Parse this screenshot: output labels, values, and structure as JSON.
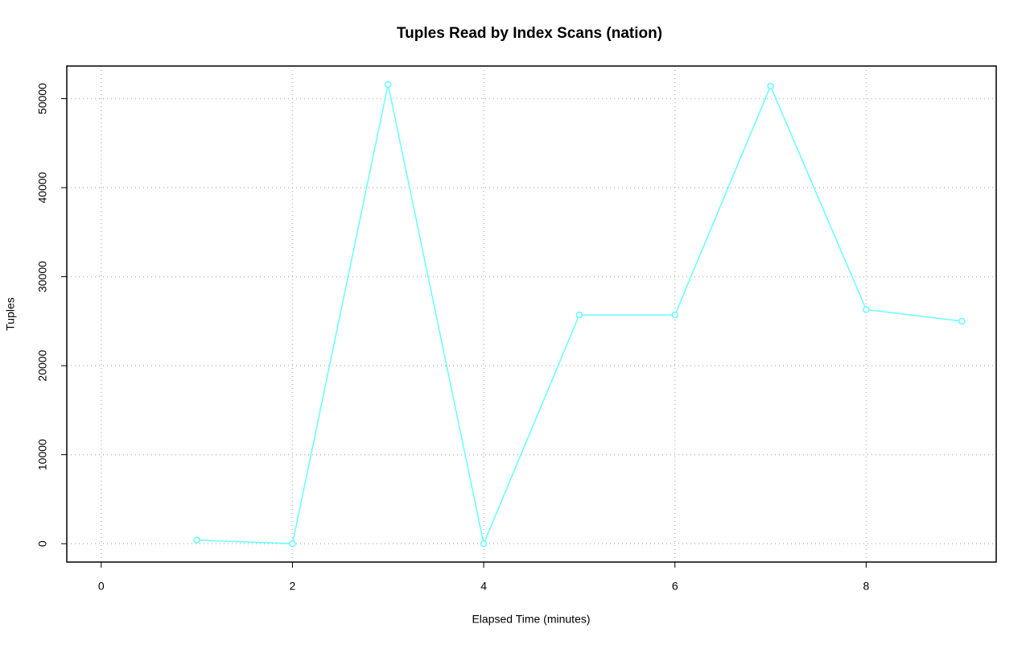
{
  "chart_data": {
    "type": "line",
    "title": "Tuples Read by Index Scans (nation)",
    "x_label": "Elapsed Time (minutes)",
    "y_label": "Tuples",
    "x": [
      1,
      2,
      3,
      4,
      5,
      6,
      7,
      8,
      9
    ],
    "series": [
      {
        "color": "#66ffff",
        "values": [
          400,
          0,
          51600,
          0,
          25700,
          25700,
          51400,
          26300,
          25000
        ]
      }
    ],
    "xlim": [
      -0.36,
      9.36
    ],
    "ylim": [
      -2064,
      53664
    ],
    "xticks": [
      0,
      2,
      4,
      6,
      8
    ],
    "yticks": [
      0,
      10000,
      20000,
      30000,
      40000,
      50000
    ],
    "grid": true
  }
}
